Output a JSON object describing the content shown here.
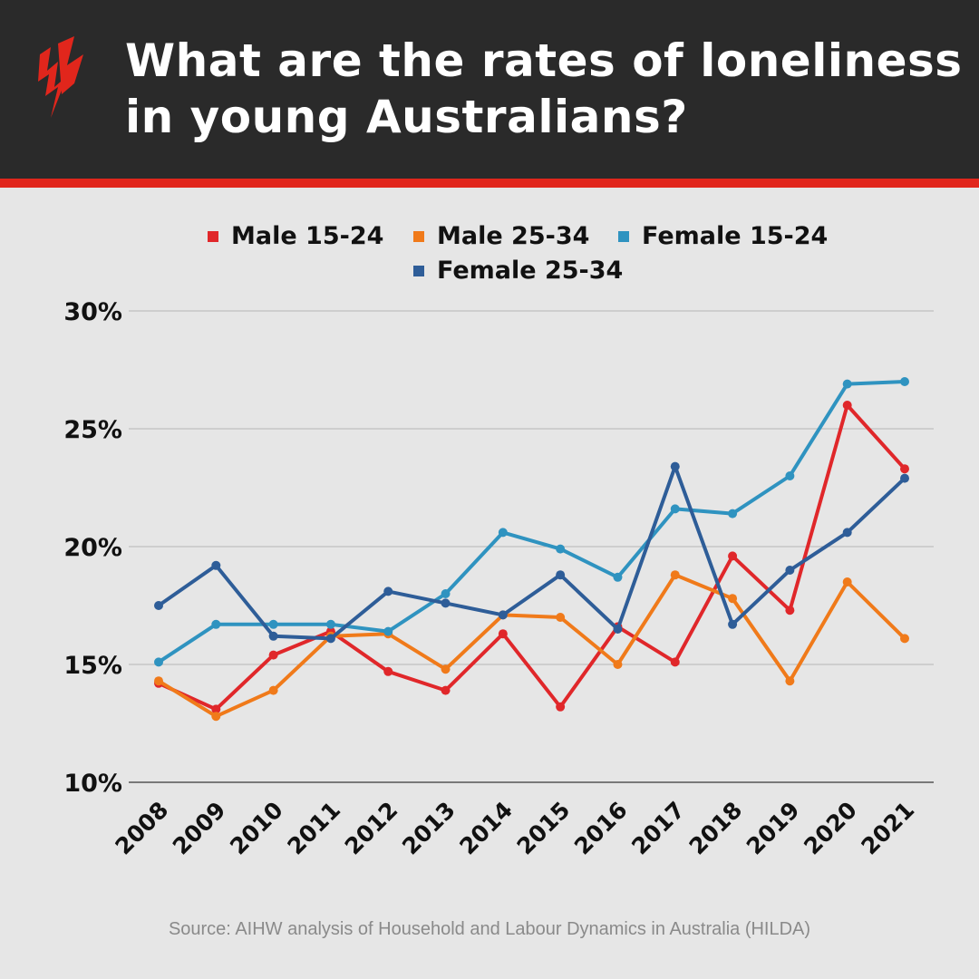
{
  "header": {
    "title": "What are the rates of loneliness in young Australians?",
    "logo": "SBS"
  },
  "source": "Source: AIHW analysis of Household and Labour Dynamics in Australia (HILDA)",
  "colors": {
    "header_bg": "#2a2a2a",
    "accent": "#e1261c",
    "background": "#e6e6e6"
  },
  "chart_data": {
    "type": "line",
    "title": "",
    "xlabel": "",
    "ylabel": "",
    "ylim": [
      10,
      30
    ],
    "y_ticks": [
      "10%",
      "15%",
      "20%",
      "25%",
      "30%"
    ],
    "grid": true,
    "legend_placement": "top",
    "categories": [
      "2008",
      "2009",
      "2010",
      "2011",
      "2012",
      "2013",
      "2014",
      "2015",
      "2016",
      "2017",
      "2018",
      "2019",
      "2020",
      "2021"
    ],
    "series": [
      {
        "name": "Male 15-24",
        "color": "#e0272a",
        "values": [
          14.2,
          13.1,
          15.4,
          16.4,
          14.7,
          13.9,
          16.3,
          13.2,
          16.6,
          15.1,
          19.6,
          17.3,
          26.0,
          23.3
        ]
      },
      {
        "name": "Male 25-34",
        "color": "#f07a1a",
        "values": [
          14.3,
          12.8,
          13.9,
          16.2,
          16.3,
          14.8,
          17.1,
          17.0,
          15.0,
          18.8,
          17.8,
          14.3,
          18.5,
          16.1
        ]
      },
      {
        "name": "Female 15-24",
        "color": "#2f93c0",
        "values": [
          15.1,
          16.7,
          16.7,
          16.7,
          16.4,
          18.0,
          20.6,
          19.9,
          18.7,
          21.6,
          21.4,
          23.0,
          26.9,
          27.0
        ]
      },
      {
        "name": "Female 25-34",
        "color": "#2e5d98",
        "values": [
          17.5,
          19.2,
          16.2,
          16.1,
          18.1,
          17.6,
          17.1,
          18.8,
          16.5,
          23.4,
          16.7,
          19.0,
          20.6,
          22.9
        ]
      }
    ]
  }
}
